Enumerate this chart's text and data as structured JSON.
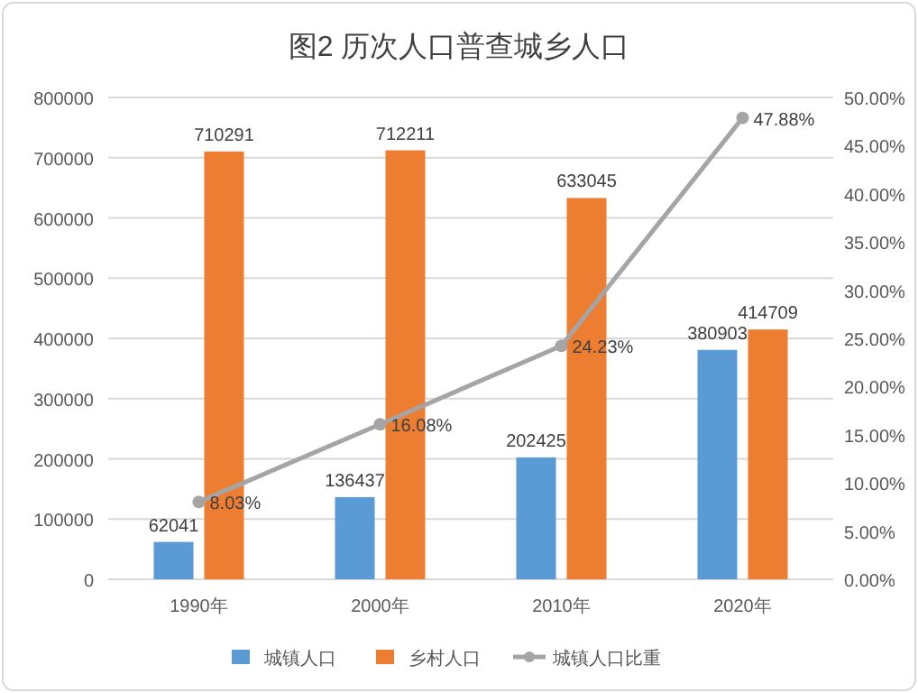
{
  "chart_data": {
    "type": "bar",
    "title": "图2  历次人口普查城乡人口",
    "categories": [
      "1990年",
      "2000年",
      "2010年",
      "2020年"
    ],
    "series": [
      {
        "name": "城镇人口",
        "color": "#5b9bd5",
        "values": [
          62041,
          136437,
          202425,
          380903
        ]
      },
      {
        "name": "乡村人口",
        "color": "#ed7d31",
        "values": [
          710291,
          712211,
          633045,
          414709
        ]
      },
      {
        "name": "城镇人口比重",
        "type": "line",
        "axis": "y2",
        "color": "#a5a5a5",
        "marker": "circle",
        "values": [
          8.03,
          16.08,
          24.23,
          47.88
        ],
        "value_labels": [
          "8.03%",
          "16.08%",
          "24.23%",
          "47.88%"
        ]
      }
    ],
    "ylim": [
      0,
      800000
    ],
    "yticks": [
      0,
      100000,
      200000,
      300000,
      400000,
      500000,
      600000,
      700000,
      800000
    ],
    "y2lim": [
      0,
      50
    ],
    "y2ticks": [
      {
        "value": 0,
        "label": "0.00%"
      },
      {
        "value": 5,
        "label": "5.00%"
      },
      {
        "value": 10,
        "label": "10.00%"
      },
      {
        "value": 15,
        "label": "15.00%"
      },
      {
        "value": 20,
        "label": "20.00%"
      },
      {
        "value": 25,
        "label": "25.00%"
      },
      {
        "value": 30,
        "label": "30.00%"
      },
      {
        "value": 35,
        "label": "35.00%"
      },
      {
        "value": 40,
        "label": "40.00%"
      },
      {
        "value": 45,
        "label": "45.00%"
      },
      {
        "value": 50,
        "label": "50.00%"
      }
    ],
    "data_labels": true,
    "grid": "y",
    "legend": "bottom"
  }
}
